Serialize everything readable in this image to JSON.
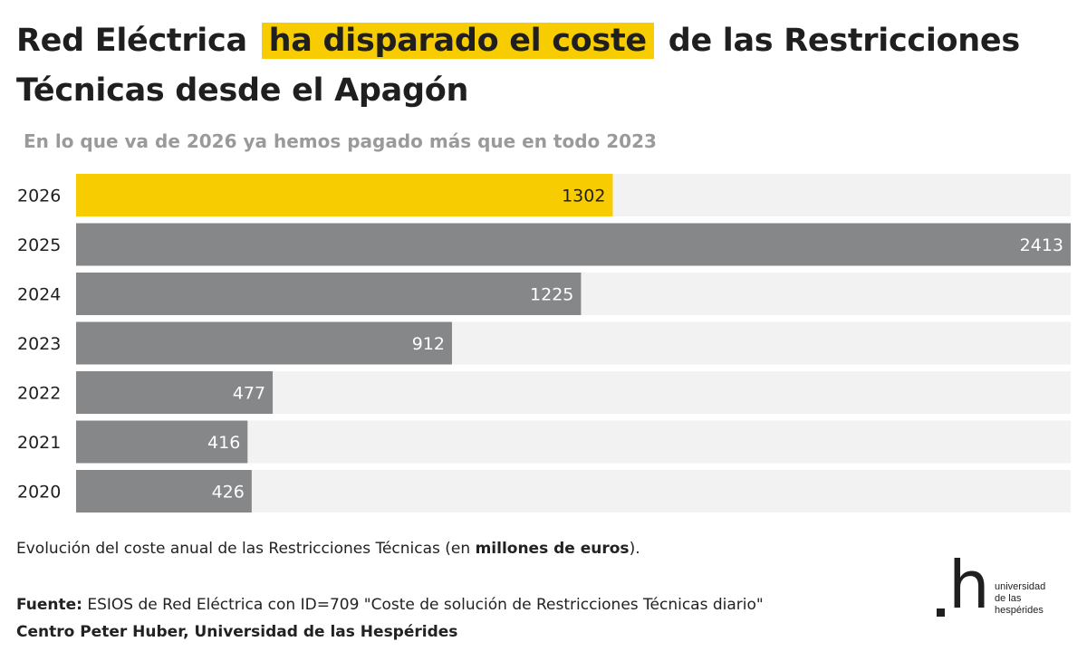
{
  "title": {
    "part1": "Red Eléctrica",
    "highlight": "ha disparado el coste",
    "part2": "de las Restricciones Técnicas desde el Apagón"
  },
  "subtitle": "En lo que va de 2026 ya hemos pagado más que en todo 2023",
  "caption": {
    "text_before": "Evolución del coste anual de las Restricciones Técnicas (en ",
    "bold": "millones de euros",
    "text_after": ")."
  },
  "source": {
    "label": "Fuente:",
    "text": "ESIOS de Red Eléctrica con ID=709 \"Coste de solución de Restricciones Técnicas diario\"",
    "author": "Centro Peter Huber, Universidad de las Hespérides"
  },
  "logo": {
    "mark": "h",
    "line1": "universidad",
    "line2": "de las",
    "line3": "hespérides"
  },
  "colors": {
    "highlight": "#f7cc00",
    "bar_gray": "#858789",
    "track": "#f2f2f2",
    "label_text": "#ffffff",
    "highlight_label_text": "#1f1f1f"
  },
  "chart_data": {
    "type": "bar",
    "orientation": "horizontal",
    "title": "Evolución del coste anual de las Restricciones Técnicas",
    "xlabel": "",
    "ylabel": "millones de euros",
    "xlim": [
      0,
      2413
    ],
    "categories": [
      "2026",
      "2025",
      "2024",
      "2023",
      "2022",
      "2021",
      "2020"
    ],
    "values": [
      1302,
      2413,
      1225,
      912,
      477,
      416,
      426
    ],
    "highlighted_category": "2026",
    "grid": false
  }
}
